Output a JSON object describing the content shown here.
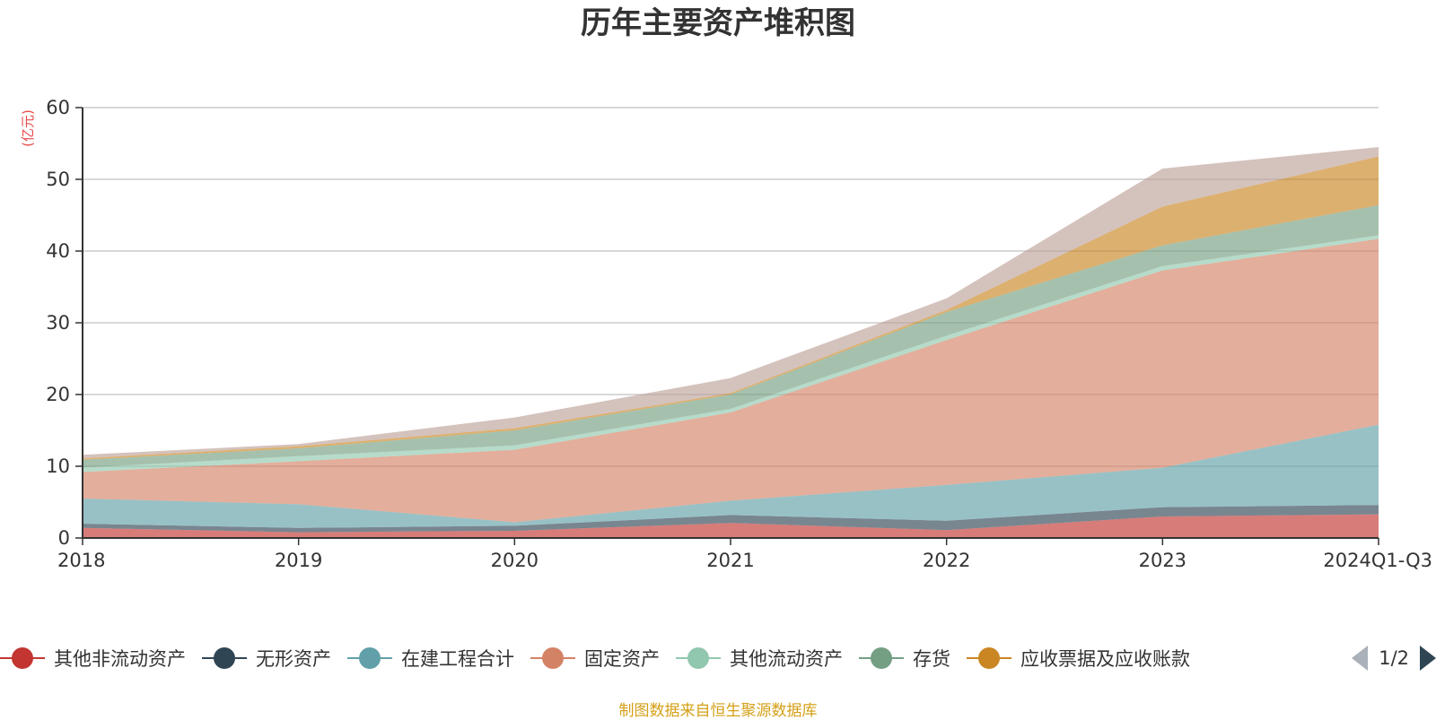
{
  "chart_data": {
    "type": "area",
    "stacked": true,
    "title": "历年主要资产堆积图",
    "unit_label": "(亿元)",
    "categories": [
      "2018",
      "2019",
      "2020",
      "2021",
      "2022",
      "2023",
      "2024Q1-Q3"
    ],
    "ylim": [
      0,
      60
    ],
    "y_ticks": [
      "0",
      "10",
      "20",
      "30",
      "40",
      "50",
      "60"
    ],
    "grid": true,
    "legend_position": "bottom",
    "series": [
      {
        "name": "其他非流动资产",
        "color": "#c23531",
        "values": [
          1.4,
          0.8,
          1.0,
          2.1,
          1.1,
          3.0,
          3.3
        ]
      },
      {
        "name": "无形资产",
        "color": "#2f4554",
        "values": [
          0.6,
          0.6,
          0.7,
          1.1,
          1.3,
          1.3,
          1.3
        ]
      },
      {
        "name": "在建工程合计",
        "color": "#61a0a8",
        "values": [
          3.5,
          3.3,
          0.5,
          2.0,
          5.0,
          5.5,
          11.2
        ]
      },
      {
        "name": "固定资产",
        "color": "#d48265",
        "values": [
          3.7,
          6.0,
          10.1,
          12.3,
          20.2,
          27.5,
          25.9
        ]
      },
      {
        "name": "其他流动资产",
        "color": "#91c7ae",
        "values": [
          0.6,
          0.7,
          0.6,
          0.5,
          0.6,
          0.6,
          0.5
        ]
      },
      {
        "name": "存货",
        "color": "#749f83",
        "values": [
          1.1,
          1.1,
          2.1,
          2.0,
          3.3,
          2.9,
          4.2
        ]
      },
      {
        "name": "应收票据及应收账款",
        "color": "#ca8622",
        "values": [
          0.2,
          0.3,
          0.3,
          0.2,
          0.3,
          5.4,
          6.8
        ]
      },
      {
        "name": "",
        "color": "#bda29a",
        "values": [
          0.5,
          0.3,
          1.5,
          2.1,
          1.6,
          5.3,
          1.3
        ]
      }
    ]
  },
  "legend_pager": {
    "text": "1/2"
  },
  "source_note": "制图数据来自恒生聚源数据库"
}
